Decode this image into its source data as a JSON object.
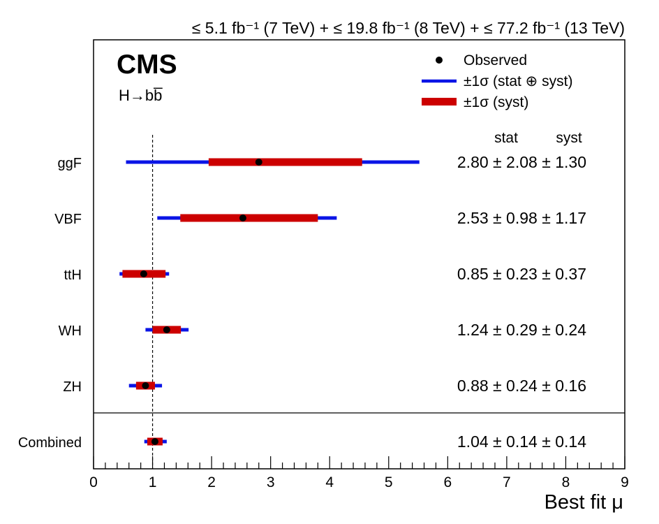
{
  "chart_data": {
    "type": "scatter",
    "experiment": "CMS",
    "process": "H→bb̅",
    "lumi_label": "≤ 5.1 fb⁻¹ (7 TeV) + ≤ 19.8 fb⁻¹ (8 TeV) + ≤ 77.2 fb⁻¹ (13 TeV)",
    "xlabel": "Best fit μ",
    "ylabel": "",
    "xlim": [
      0,
      9
    ],
    "x_ticks": [
      "0",
      "1",
      "2",
      "3",
      "4",
      "5",
      "6",
      "7",
      "8",
      "9"
    ],
    "sm_reference": 1,
    "legend": {
      "placement": "top-right",
      "entries": [
        {
          "label": "Observed",
          "style": "point",
          "color": "#000000"
        },
        {
          "label": "±1σ (stat ⊕ syst)",
          "style": "line",
          "color": "#0a14e6"
        },
        {
          "label": "±1σ (syst)",
          "style": "band",
          "color": "#cc0000"
        }
      ]
    },
    "column_headers": {
      "stat": "stat",
      "syst": "syst"
    },
    "categories": [
      "ggF",
      "VBF",
      "ttH",
      "WH",
      "ZH",
      "Combined"
    ],
    "series": [
      {
        "category": "ggF",
        "mu": 2.8,
        "stat": 2.08,
        "syst": 1.3,
        "total_lo": 0.55,
        "total_hi": 5.52,
        "syst_lo": 1.95,
        "syst_hi": 4.55,
        "result": "2.80 ± 2.08 ± 1.30"
      },
      {
        "category": "VBF",
        "mu": 2.53,
        "stat": 0.98,
        "syst": 1.17,
        "total_lo": 1.08,
        "total_hi": 4.12,
        "syst_lo": 1.47,
        "syst_hi": 3.8,
        "result": "2.53 ± 0.98 ± 1.17"
      },
      {
        "category": "ttH",
        "mu": 0.85,
        "stat": 0.23,
        "syst": 0.37,
        "total_lo": 0.44,
        "total_hi": 1.28,
        "syst_lo": 0.49,
        "syst_hi": 1.22,
        "result": "0.85 ± 0.23 ± 0.37"
      },
      {
        "category": "WH",
        "mu": 1.24,
        "stat": 0.29,
        "syst": 0.24,
        "total_lo": 0.88,
        "total_hi": 1.61,
        "syst_lo": 1.0,
        "syst_hi": 1.48,
        "result": "1.24 ± 0.29 ± 0.24"
      },
      {
        "category": "ZH",
        "mu": 0.88,
        "stat": 0.24,
        "syst": 0.16,
        "total_lo": 0.6,
        "total_hi": 1.16,
        "syst_lo": 0.72,
        "syst_hi": 1.04,
        "result": "0.88 ± 0.24 ± 0.16"
      },
      {
        "category": "Combined",
        "mu": 1.04,
        "stat": 0.14,
        "syst": 0.14,
        "total_lo": 0.86,
        "total_hi": 1.24,
        "syst_lo": 0.91,
        "syst_hi": 1.17,
        "result": "1.04 ± 0.14 ± 0.14"
      }
    ],
    "grid": false
  }
}
